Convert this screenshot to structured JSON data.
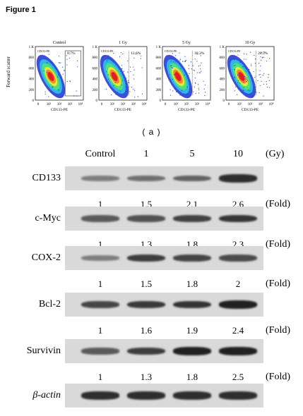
{
  "figure": {
    "title": "Figure 1",
    "panel_a_label": "( a )"
  },
  "flow": {
    "y_axis_label": "Forward scatter",
    "x_axis_label": "CD133-PE",
    "y_ticks": [
      "1 K",
      "800",
      "600",
      "400",
      "200",
      "0"
    ],
    "x_ticks": [
      "0",
      "10¹",
      "10²",
      "10³",
      "10⁴"
    ],
    "gate_label": "CD133-PE",
    "plots": [
      {
        "title": "Control",
        "percent": "8.7%"
      },
      {
        "title": "1 Gy",
        "percent": "12.6%"
      },
      {
        "title": "5 Gy",
        "percent": "18.3%"
      },
      {
        "title": "10 Gy",
        "percent": "28.5%"
      }
    ]
  },
  "blot": {
    "columns": [
      "Control",
      "1",
      "5",
      "10"
    ],
    "column_unit": "(Gy)",
    "fold_unit": "(Fold)",
    "rows": [
      {
        "label": "CD133",
        "folds": [
          "1",
          "1.5",
          "2.1",
          "2.6"
        ],
        "intensity": [
          0.3,
          0.4,
          0.48,
          0.85
        ]
      },
      {
        "label": "c-Myc",
        "folds": [
          "1",
          "1.3",
          "1.8",
          "2.3"
        ],
        "intensity": [
          0.55,
          0.62,
          0.72,
          0.8
        ]
      },
      {
        "label": "COX-2",
        "folds": [
          "1",
          "1.5",
          "1.8",
          "2"
        ],
        "intensity": [
          0.3,
          0.75,
          0.7,
          0.65
        ]
      },
      {
        "label": "Bcl-2",
        "folds": [
          "1",
          "1.6",
          "1.9",
          "2.4"
        ],
        "intensity": [
          0.7,
          0.78,
          0.82,
          0.95
        ]
      },
      {
        "label": "Survivin",
        "folds": [
          "1",
          "1.3",
          "1.8",
          "2.5"
        ],
        "intensity": [
          0.55,
          0.75,
          0.95,
          0.95
        ]
      },
      {
        "label": "β-actin",
        "folds": [],
        "intensity": [
          0.85,
          0.85,
          0.85,
          0.85
        ]
      }
    ],
    "colors": {
      "membrane": "#d9d9d9",
      "band": "#1a1a1a"
    }
  }
}
